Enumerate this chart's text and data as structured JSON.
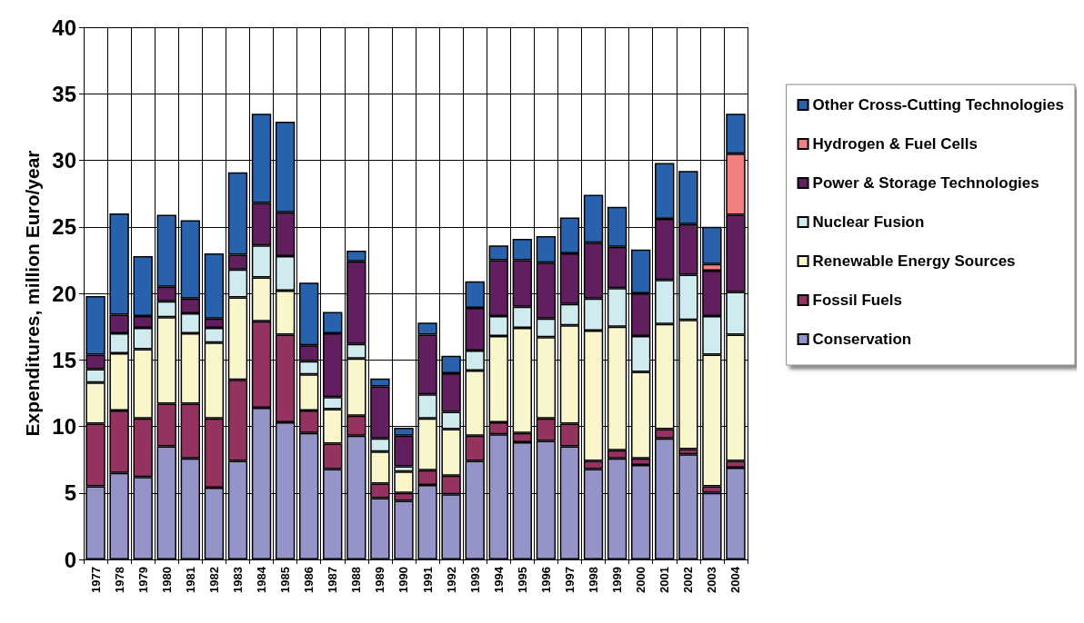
{
  "chart_data": {
    "type": "bar",
    "stacked": true,
    "ylabel": "Expenditures, million Euro/year",
    "categories": [
      "1977",
      "1978",
      "1979",
      "1980",
      "1981",
      "1982",
      "1983",
      "1984",
      "1985",
      "1986",
      "1987",
      "1988",
      "1989",
      "1990",
      "1991",
      "1992",
      "1993",
      "1994",
      "1995",
      "1996",
      "1997",
      "1998",
      "1999",
      "2000",
      "2001",
      "2002",
      "2003",
      "2004"
    ],
    "ylim": [
      0,
      40
    ],
    "yticks": [
      0,
      5,
      10,
      15,
      20,
      25,
      30,
      35,
      40
    ],
    "grid": true,
    "legend": "right",
    "series": [
      {
        "name": "Conservation",
        "color": "#9494c8",
        "values": [
          5.5,
          6.5,
          6.2,
          8.5,
          7.6,
          5.4,
          7.4,
          11.4,
          10.3,
          9.5,
          6.8,
          9.3,
          4.6,
          4.4,
          5.6,
          4.9,
          7.4,
          9.4,
          8.8,
          8.9,
          8.5,
          6.8,
          7.6,
          7.1,
          9.1,
          7.9,
          5.0,
          6.9
        ]
      },
      {
        "name": "Fossil Fuels",
        "color": "#943360",
        "values": [
          4.7,
          4.7,
          4.4,
          3.2,
          4.1,
          5.2,
          6.1,
          6.5,
          6.6,
          1.7,
          1.9,
          1.5,
          1.1,
          0.6,
          1.1,
          1.4,
          1.9,
          0.9,
          0.7,
          1.7,
          1.7,
          0.6,
          0.6,
          0.5,
          0.7,
          0.4,
          0.5,
          0.5
        ]
      },
      {
        "name": "Renewable Energy Sources",
        "color": "#faf6cc",
        "values": [
          3.1,
          4.3,
          5.2,
          6.5,
          5.3,
          5.7,
          6.2,
          3.3,
          3.3,
          2.7,
          2.6,
          4.3,
          2.4,
          1.6,
          3.9,
          3.5,
          4.9,
          6.5,
          7.9,
          6.1,
          7.4,
          9.8,
          9.3,
          6.5,
          7.9,
          9.7,
          9.9,
          9.5
        ]
      },
      {
        "name": "Nuclear Fusion",
        "color": "#cfebf0",
        "values": [
          1.0,
          1.5,
          1.6,
          1.2,
          1.5,
          1.1,
          2.1,
          2.4,
          2.6,
          1.0,
          0.9,
          1.1,
          1.0,
          0.4,
          1.8,
          1.3,
          1.5,
          1.5,
          1.6,
          1.4,
          1.6,
          2.4,
          2.9,
          2.7,
          3.3,
          3.4,
          2.9,
          3.2
        ]
      },
      {
        "name": "Power & Storage Technologies",
        "color": "#621f60",
        "values": [
          1.1,
          1.4,
          0.9,
          1.1,
          1.1,
          0.7,
          1.1,
          3.2,
          3.3,
          1.2,
          4.8,
          6.2,
          3.9,
          2.3,
          4.5,
          2.9,
          3.2,
          4.2,
          3.5,
          4.2,
          3.8,
          4.2,
          3.1,
          3.2,
          4.6,
          3.8,
          3.4,
          5.8
        ]
      },
      {
        "name": "Hydrogen & Fuel Cells",
        "color": "#f28080",
        "values": [
          null,
          null,
          null,
          null,
          null,
          null,
          null,
          null,
          null,
          null,
          null,
          null,
          null,
          null,
          null,
          null,
          null,
          null,
          null,
          null,
          null,
          null,
          null,
          null,
          null,
          null,
          0.5,
          4.6
        ]
      },
      {
        "name": "Other Cross-Cutting Technologies",
        "color": "#2862ad",
        "values": [
          4.4,
          7.6,
          4.5,
          5.4,
          5.9,
          4.9,
          6.2,
          6.7,
          6.8,
          4.7,
          1.6,
          0.8,
          0.6,
          0.6,
          0.9,
          1.3,
          2.0,
          1.1,
          1.6,
          2.0,
          2.7,
          3.6,
          3.0,
          3.3,
          4.2,
          4.0,
          2.8,
          3.0
        ]
      }
    ]
  }
}
